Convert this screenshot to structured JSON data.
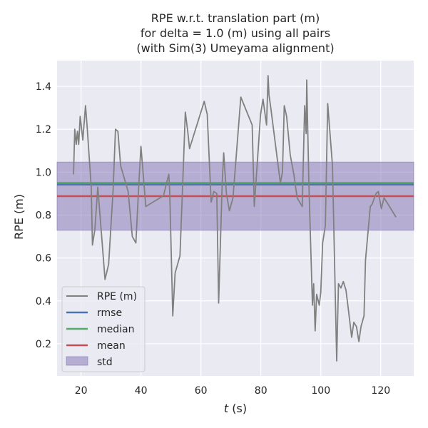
{
  "chart_data": {
    "type": "line",
    "title_lines": [
      "RPE w.r.t. translation part (m)",
      "for delta = 1.0 (m) using all pairs",
      "(with Sim(3) Umeyama alignment)"
    ],
    "xlabel_var": "t",
    "xlabel_unit": " (s)",
    "ylabel": "RPE (m)",
    "xlim": [
      12,
      131
    ],
    "ylim": [
      0.05,
      1.52
    ],
    "xticks": [
      20,
      40,
      60,
      80,
      100,
      120
    ],
    "yticks": [
      0.2,
      0.4,
      0.6,
      0.8,
      1.0,
      1.2,
      1.4
    ],
    "xtick_labels": [
      "20",
      "40",
      "60",
      "80",
      "100",
      "120"
    ],
    "ytick_labels": [
      "0.2",
      "0.4",
      "0.6",
      "0.8",
      "1.0",
      "1.2",
      "1.4"
    ],
    "grid": true,
    "legend_position": "lower-left",
    "series": [
      {
        "name": "RPE (m)",
        "color": "#808080",
        "x": [
          17.5,
          17.9,
          18.4,
          18.8,
          19.2,
          19.7,
          20.6,
          21.5,
          22.0,
          23.4,
          23.8,
          24.6,
          25.6,
          27.0,
          28.0,
          29.2,
          30.7,
          31.5,
          32.3,
          33.2,
          35.7,
          37.1,
          38.3,
          39.3,
          40.0,
          41.6,
          47.5,
          48.9,
          49.3,
          49.6,
          50.6,
          51.4,
          53.0,
          54.2,
          54.8,
          55.6,
          56.2,
          61.1,
          62.1,
          63.4,
          64.3,
          65.3,
          65.7,
          65.9,
          67.1,
          67.6,
          68.5,
          69.5,
          70.7,
          73.3,
          77.1,
          77.8,
          79.9,
          80.7,
          81.9,
          82.4,
          82.7,
          83.3,
          85.3,
          86.5,
          87.2,
          87.8,
          88.6,
          89.8,
          91.0,
          92.1,
          93.8,
          94.6,
          95.1,
          95.3,
          96.0,
          97.2,
          97.6,
          98.1,
          98.6,
          99.5,
          100.0,
          100.6,
          101.5,
          102.3,
          103.9,
          105.3,
          105.9,
          106.7,
          107.5,
          108.4,
          109.1,
          110.3,
          111.0,
          111.9,
          112.7,
          113.4,
          114.4,
          114.9,
          116.5,
          117.1,
          118.4,
          119.2,
          120.2,
          121.1,
          122.0,
          125.1
        ],
        "y": [
          0.99,
          1.2,
          1.13,
          1.19,
          1.13,
          1.26,
          1.15,
          1.31,
          1.22,
          0.93,
          0.66,
          0.73,
          0.93,
          0.68,
          0.5,
          0.57,
          0.92,
          1.2,
          1.19,
          1.03,
          0.91,
          0.7,
          0.67,
          0.95,
          1.12,
          0.84,
          0.89,
          0.97,
          0.99,
          0.9,
          0.33,
          0.53,
          0.61,
          1.05,
          1.28,
          1.19,
          1.11,
          1.33,
          1.27,
          0.86,
          0.91,
          0.9,
          0.57,
          0.39,
          0.95,
          1.09,
          0.9,
          0.82,
          0.88,
          1.35,
          1.22,
          0.84,
          1.27,
          1.34,
          1.22,
          1.45,
          1.36,
          1.3,
          1.08,
          0.95,
          1.0,
          1.31,
          1.26,
          1.08,
          0.99,
          0.88,
          0.84,
          1.31,
          1.18,
          1.43,
          0.96,
          0.38,
          0.48,
          0.26,
          0.43,
          0.38,
          0.44,
          0.67,
          0.75,
          1.32,
          1.03,
          0.12,
          0.48,
          0.46,
          0.49,
          0.45,
          0.37,
          0.23,
          0.3,
          0.28,
          0.21,
          0.28,
          0.33,
          0.59,
          0.84,
          0.85,
          0.9,
          0.91,
          0.83,
          0.88,
          0.86,
          0.79
        ]
      }
    ],
    "stats": [
      {
        "name": "rmse",
        "value": 0.942,
        "color": "#4c72b0"
      },
      {
        "name": "median",
        "value": 0.95,
        "color": "#55a868"
      },
      {
        "name": "mean",
        "value": 0.888,
        "color": "#c44e52"
      }
    ],
    "std_band": {
      "name": "std",
      "lower": 0.729,
      "upper": 1.047,
      "color": "#8172b2"
    },
    "colors": {
      "background": "#eaeaf2",
      "grid": "#ffffff",
      "text": "#262626"
    }
  }
}
